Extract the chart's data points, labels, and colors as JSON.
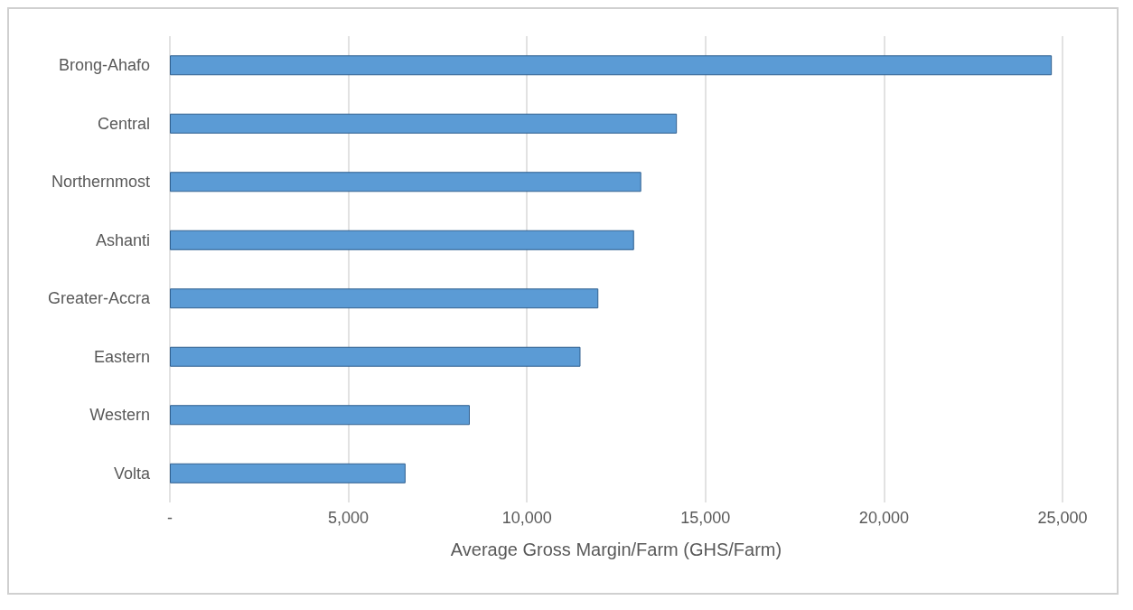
{
  "chart_data": {
    "type": "bar",
    "orientation": "horizontal",
    "xlabel": "Average Gross Margin/Farm (GHS/Farm)",
    "categories": [
      "Brong-Ahafo",
      "Central",
      "Northernmost",
      "Ashanti",
      "Greater-Accra",
      "Eastern",
      "Western",
      "Volta"
    ],
    "values": [
      24700,
      14200,
      13200,
      13000,
      12000,
      11500,
      8400,
      6600
    ],
    "color": "#5b9bd5",
    "xlim": [
      0,
      25000
    ],
    "xticks": [
      {
        "value": 0,
        "label": "-"
      },
      {
        "value": 5000,
        "label": "5,000"
      },
      {
        "value": 10000,
        "label": "10,000"
      },
      {
        "value": 15000,
        "label": "15,000"
      },
      {
        "value": 20000,
        "label": "20,000"
      },
      {
        "value": 25000,
        "label": "25,000"
      }
    ],
    "grid": "x"
  }
}
